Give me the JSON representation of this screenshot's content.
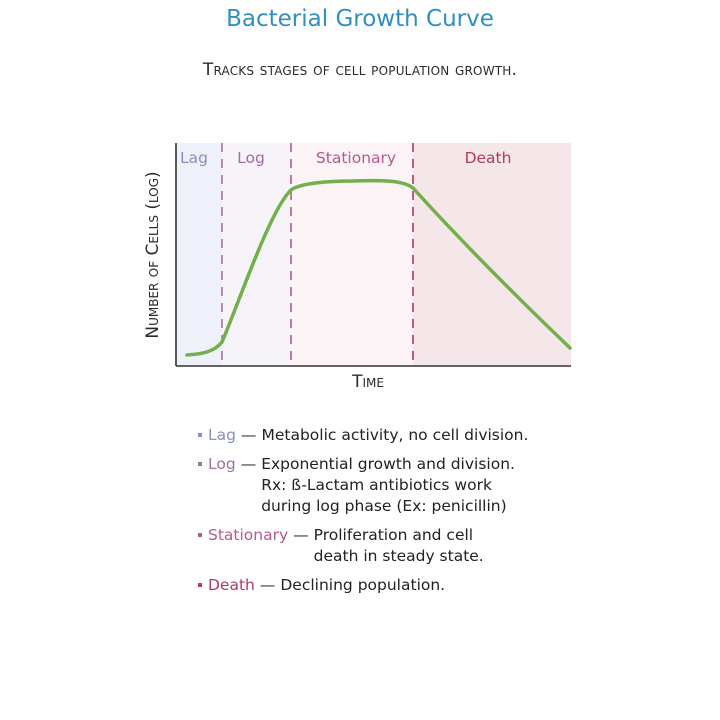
{
  "title": "Bacterial Growth Curve",
  "subtitle": "Tracks stages of cell population growth.",
  "chart_data": {
    "type": "line",
    "xlabel": "Time",
    "ylabel": "Number of Cells (log)",
    "phases": [
      {
        "name": "Lag",
        "color": "#8a8fbf",
        "bg": "#eef0fa"
      },
      {
        "name": "Log",
        "color": "#a46fa3",
        "bg": "#f6f3f9"
      },
      {
        "name": "Stationary",
        "color": "#b85a8c",
        "bg": "#fbf3f6"
      },
      {
        "name": "Death",
        "color": "#b33a5c",
        "bg": "#f5e6ea"
      }
    ],
    "curve_color": "#72b04a"
  },
  "legend": [
    {
      "term": "Lag",
      "color": "#8a8fbf",
      "dash": "—",
      "desc": "Metabolic activity, no cell division."
    },
    {
      "term": "Log",
      "color": "#a46fa3",
      "dash": "—",
      "desc": "Exponential growth and division.\nRx: ß-Lactam antibiotics work\nduring log phase (Ex: penicillin)"
    },
    {
      "term": "Stationary",
      "color": "#b85a8c",
      "dash": "—",
      "desc": "Proliferation and cell\ndeath in steady state."
    },
    {
      "term": "Death",
      "color": "#b33a5c",
      "dash": "—",
      "desc": "Declining population."
    }
  ]
}
